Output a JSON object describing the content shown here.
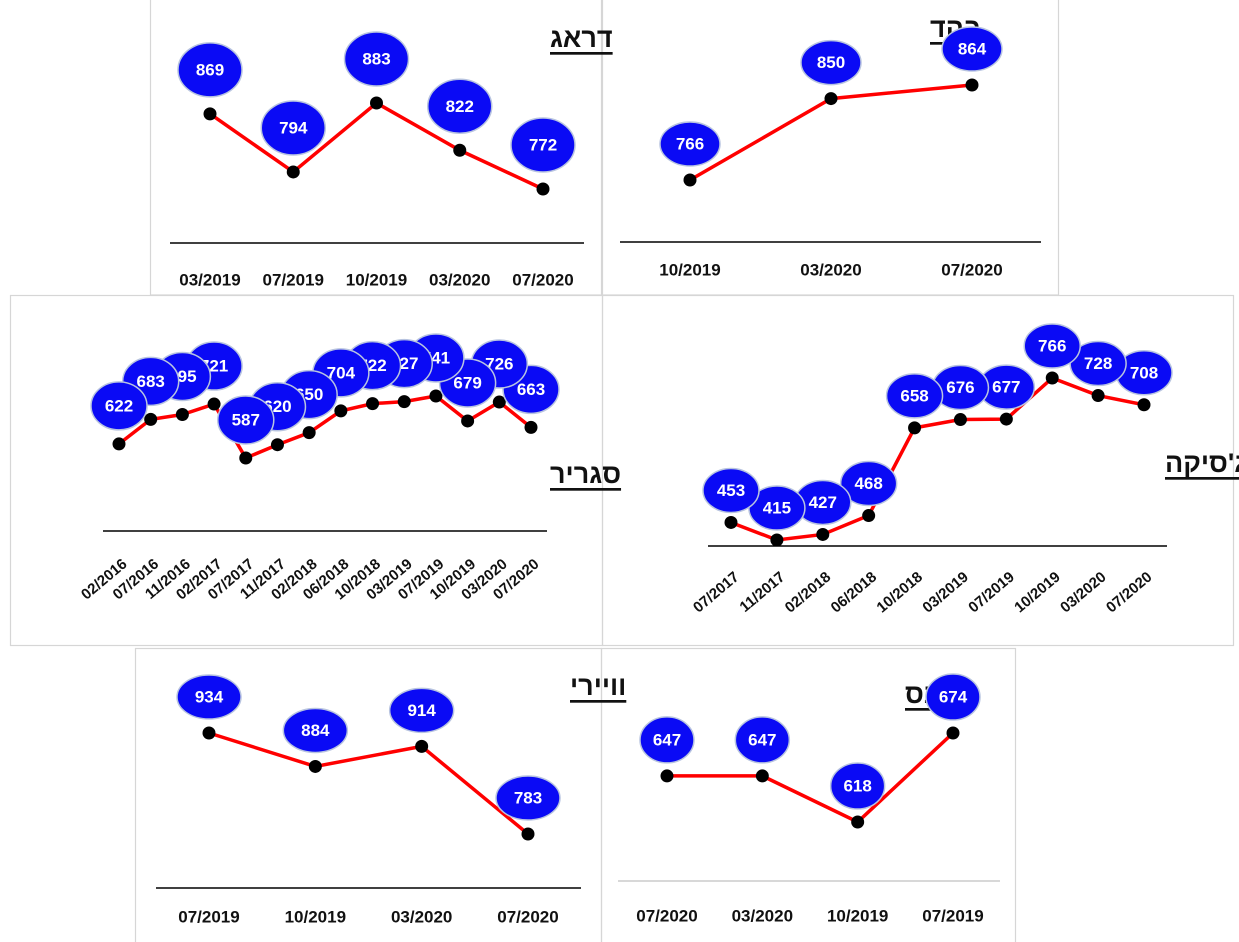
{
  "chart_data": [
    {
      "type": "line",
      "title": "דראג",
      "categories": [
        "03/2019",
        "07/2019",
        "10/2019",
        "03/2020",
        "07/2020"
      ],
      "values": [
        869,
        794,
        883,
        822,
        772
      ],
      "color": "#ff0000"
    },
    {
      "type": "line",
      "title": "בהד",
      "categories": [
        "10/2019",
        "03/2020",
        "07/2020"
      ],
      "values": [
        766,
        850,
        864
      ],
      "color": "#ff0000"
    },
    {
      "type": "line",
      "title": "סגריר",
      "categories": [
        "02/2016",
        "07/2016",
        "11/2016",
        "02/2017",
        "07/2017",
        "11/2017",
        "02/2018",
        "06/2018",
        "10/2018",
        "03/2019",
        "07/2019",
        "10/2019",
        "03/2020",
        "07/2020"
      ],
      "values": [
        622,
        683,
        695,
        721,
        587,
        620,
        650,
        704,
        722,
        727,
        741,
        679,
        726,
        663
      ],
      "color": "#ff0000"
    },
    {
      "type": "line",
      "title": "ג'סיקה",
      "categories": [
        "07/2017",
        "11/2017",
        "02/2018",
        "06/2018",
        "10/2018",
        "03/2019",
        "07/2019",
        "10/2019",
        "03/2020",
        "07/2020"
      ],
      "values": [
        453,
        415,
        427,
        468,
        658,
        676,
        677,
        766,
        728,
        708
      ],
      "color": "#ff0000"
    },
    {
      "type": "line",
      "title": "וויירי",
      "categories": [
        "07/2019",
        "10/2019",
        "03/2020",
        "07/2020"
      ],
      "values": [
        934,
        884,
        914,
        783
      ],
      "color": "#ff0000"
    },
    {
      "type": "line",
      "title": "ריבס",
      "categories": [
        "07/2020",
        "03/2020",
        "10/2019",
        "07/2019"
      ],
      "values": [
        647,
        647,
        618,
        674
      ],
      "color": "#ff0000"
    }
  ]
}
